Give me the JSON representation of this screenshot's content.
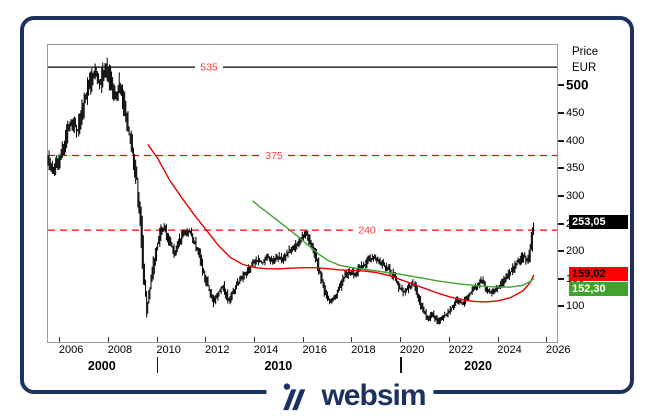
{
  "brand": {
    "name": "websim",
    "color": "#1b3261"
  },
  "chart": {
    "y_axis": {
      "title_line1": "Price",
      "title_line2": "EUR",
      "ticks": [
        500,
        450,
        400,
        350,
        300,
        250,
        200,
        150,
        100
      ],
      "bold_tick": 500,
      "hidden_behind_badges": [
        250,
        150
      ]
    },
    "x_axis": {
      "year_ticks": [
        2006,
        2008,
        2010,
        2012,
        2014,
        2016,
        2018,
        2020,
        2022,
        2024,
        2026
      ],
      "decades": [
        {
          "label": "2000",
          "center_year": 2007.75
        },
        {
          "label": "2010",
          "center_year": 2015.0
        },
        {
          "label": "2020",
          "center_year": 2023.2
        }
      ],
      "decade_separator_years": [
        2010,
        2020
      ]
    },
    "badges": [
      {
        "text": "253,05",
        "value": 253.05,
        "bg": "#000000",
        "fg": "#ffffff",
        "role": "last-price"
      },
      {
        "text": "159,02",
        "value": 159.02,
        "bg": "#ff0000",
        "fg": "#000000",
        "role": "red-ma-value"
      },
      {
        "text": "152,30",
        "value": 152.3,
        "bg": "#3fa32e",
        "fg": "#ffffff",
        "role": "green-ma-value"
      }
    ]
  },
  "chart_data": {
    "type": "line",
    "title": "",
    "xlabel": "",
    "ylabel": "Price EUR",
    "x_range": [
      2005.5,
      2026.4
    ],
    "y_range": [
      37.5,
      575
    ],
    "grid": false,
    "legend": "none",
    "levels": [
      {
        "value": 535,
        "label": "535",
        "style": "solid",
        "line_color": "#000000",
        "label_color": "#ff3b3b",
        "label_x": 208
      },
      {
        "value": 375,
        "label": "375",
        "style": "dashed",
        "line_color": "#ff0000",
        "label_color": "#ff3b3b",
        "label_x": 273
      },
      {
        "value": 240,
        "label": "240",
        "style": "dashed",
        "line_color": "#ff0000",
        "label_color": "#ff3b3b",
        "label_x": 366
      }
    ],
    "series": [
      {
        "name": "price",
        "kind": "ohlc-bars",
        "color": "#000000",
        "last_value": 253.05,
        "anchors": [
          [
            2005.5,
            370
          ],
          [
            2005.7,
            348
          ],
          [
            2005.9,
            362
          ],
          [
            2006.1,
            385
          ],
          [
            2006.3,
            425
          ],
          [
            2006.5,
            440
          ],
          [
            2006.7,
            418
          ],
          [
            2006.9,
            455
          ],
          [
            2007.1,
            490
          ],
          [
            2007.3,
            520
          ],
          [
            2007.45,
            533
          ],
          [
            2007.6,
            500
          ],
          [
            2007.75,
            528
          ],
          [
            2007.9,
            532
          ],
          [
            2008.1,
            505
          ],
          [
            2008.3,
            478
          ],
          [
            2008.45,
            505
          ],
          [
            2008.6,
            470
          ],
          [
            2008.8,
            420
          ],
          [
            2009.0,
            375
          ],
          [
            2009.15,
            330
          ],
          [
            2009.3,
            250
          ],
          [
            2009.45,
            150
          ],
          [
            2009.55,
            95
          ],
          [
            2009.7,
            140
          ],
          [
            2009.85,
            185
          ],
          [
            2010.0,
            215
          ],
          [
            2010.15,
            238
          ],
          [
            2010.3,
            243
          ],
          [
            2010.5,
            215
          ],
          [
            2010.7,
            200
          ],
          [
            2010.9,
            222
          ],
          [
            2011.1,
            235
          ],
          [
            2011.3,
            238
          ],
          [
            2011.5,
            218
          ],
          [
            2011.7,
            195
          ],
          [
            2011.9,
            162
          ],
          [
            2012.1,
            135
          ],
          [
            2012.3,
            110
          ],
          [
            2012.5,
            128
          ],
          [
            2012.7,
            140
          ],
          [
            2012.9,
            112
          ],
          [
            2013.1,
            128
          ],
          [
            2013.3,
            145
          ],
          [
            2013.5,
            155
          ],
          [
            2013.7,
            168
          ],
          [
            2013.9,
            180
          ],
          [
            2014.1,
            186
          ],
          [
            2014.3,
            180
          ],
          [
            2014.5,
            190
          ],
          [
            2014.7,
            185
          ],
          [
            2014.9,
            192
          ],
          [
            2015.1,
            188
          ],
          [
            2015.3,
            198
          ],
          [
            2015.6,
            210
          ],
          [
            2015.9,
            226
          ],
          [
            2016.1,
            232
          ],
          [
            2016.3,
            216
          ],
          [
            2016.5,
            190
          ],
          [
            2016.7,
            155
          ],
          [
            2016.9,
            122
          ],
          [
            2017.1,
            108
          ],
          [
            2017.3,
            120
          ],
          [
            2017.5,
            138
          ],
          [
            2017.7,
            158
          ],
          [
            2017.9,
            165
          ],
          [
            2018.1,
            160
          ],
          [
            2018.3,
            172
          ],
          [
            2018.5,
            178
          ],
          [
            2018.7,
            186
          ],
          [
            2018.9,
            190
          ],
          [
            2019.1,
            184
          ],
          [
            2019.3,
            176
          ],
          [
            2019.5,
            168
          ],
          [
            2019.7,
            156
          ],
          [
            2019.9,
            138
          ],
          [
            2020.1,
            128
          ],
          [
            2020.3,
            136
          ],
          [
            2020.5,
            144
          ],
          [
            2020.7,
            118
          ],
          [
            2020.9,
            95
          ],
          [
            2021.1,
            80
          ],
          [
            2021.3,
            88
          ],
          [
            2021.5,
            74
          ],
          [
            2021.7,
            82
          ],
          [
            2021.9,
            90
          ],
          [
            2022.1,
            102
          ],
          [
            2022.3,
            114
          ],
          [
            2022.5,
            106
          ],
          [
            2022.7,
            118
          ],
          [
            2022.9,
            130
          ],
          [
            2023.1,
            137
          ],
          [
            2023.3,
            150
          ],
          [
            2023.5,
            133
          ],
          [
            2023.7,
            125
          ],
          [
            2023.9,
            133
          ],
          [
            2024.1,
            142
          ],
          [
            2024.3,
            154
          ],
          [
            2024.5,
            165
          ],
          [
            2024.7,
            178
          ],
          [
            2024.9,
            188
          ],
          [
            2025.05,
            193
          ],
          [
            2025.15,
            186
          ],
          [
            2025.25,
            198
          ],
          [
            2025.35,
            222
          ],
          [
            2025.45,
            253.05
          ]
        ]
      },
      {
        "name": "red-moving-average",
        "kind": "line",
        "color": "#e60000",
        "last_value": 159.02,
        "anchors": [
          [
            2009.6,
            395
          ],
          [
            2010.0,
            370
          ],
          [
            2010.5,
            330
          ],
          [
            2011.0,
            298
          ],
          [
            2011.5,
            268
          ],
          [
            2012.0,
            240
          ],
          [
            2012.5,
            212
          ],
          [
            2013.0,
            190
          ],
          [
            2013.5,
            178
          ],
          [
            2014.0,
            172
          ],
          [
            2014.5,
            170
          ],
          [
            2015.0,
            170
          ],
          [
            2015.5,
            171
          ],
          [
            2016.0,
            172
          ],
          [
            2016.5,
            172
          ],
          [
            2017.0,
            170
          ],
          [
            2017.5,
            168
          ],
          [
            2018.0,
            167
          ],
          [
            2018.5,
            166
          ],
          [
            2019.0,
            163
          ],
          [
            2019.5,
            158
          ],
          [
            2020.0,
            150
          ],
          [
            2020.5,
            142
          ],
          [
            2021.0,
            134
          ],
          [
            2021.5,
            126
          ],
          [
            2022.0,
            119
          ],
          [
            2022.5,
            114
          ],
          [
            2023.0,
            111
          ],
          [
            2023.5,
            110
          ],
          [
            2024.0,
            112
          ],
          [
            2024.5,
            118
          ],
          [
            2025.0,
            130
          ],
          [
            2025.3,
            145
          ],
          [
            2025.45,
            159.02
          ]
        ]
      },
      {
        "name": "green-moving-average",
        "kind": "line",
        "color": "#3fa32e",
        "last_value": 152.3,
        "anchors": [
          [
            2013.9,
            293
          ],
          [
            2014.2,
            282
          ],
          [
            2014.5,
            272
          ],
          [
            2015.0,
            255
          ],
          [
            2015.4,
            241
          ],
          [
            2015.8,
            227
          ],
          [
            2016.2,
            212
          ],
          [
            2016.6,
            197
          ],
          [
            2017.0,
            185
          ],
          [
            2017.5,
            176
          ],
          [
            2018.0,
            172
          ],
          [
            2018.5,
            169
          ],
          [
            2019.0,
            166
          ],
          [
            2019.5,
            163
          ],
          [
            2020.0,
            160
          ],
          [
            2020.5,
            156
          ],
          [
            2021.0,
            152
          ],
          [
            2021.5,
            148
          ],
          [
            2022.0,
            145
          ],
          [
            2022.5,
            142
          ],
          [
            2023.0,
            140
          ],
          [
            2023.5,
            138
          ],
          [
            2024.0,
            137
          ],
          [
            2024.5,
            137
          ],
          [
            2025.0,
            140
          ],
          [
            2025.3,
            147
          ],
          [
            2025.45,
            152.3
          ]
        ]
      }
    ]
  }
}
